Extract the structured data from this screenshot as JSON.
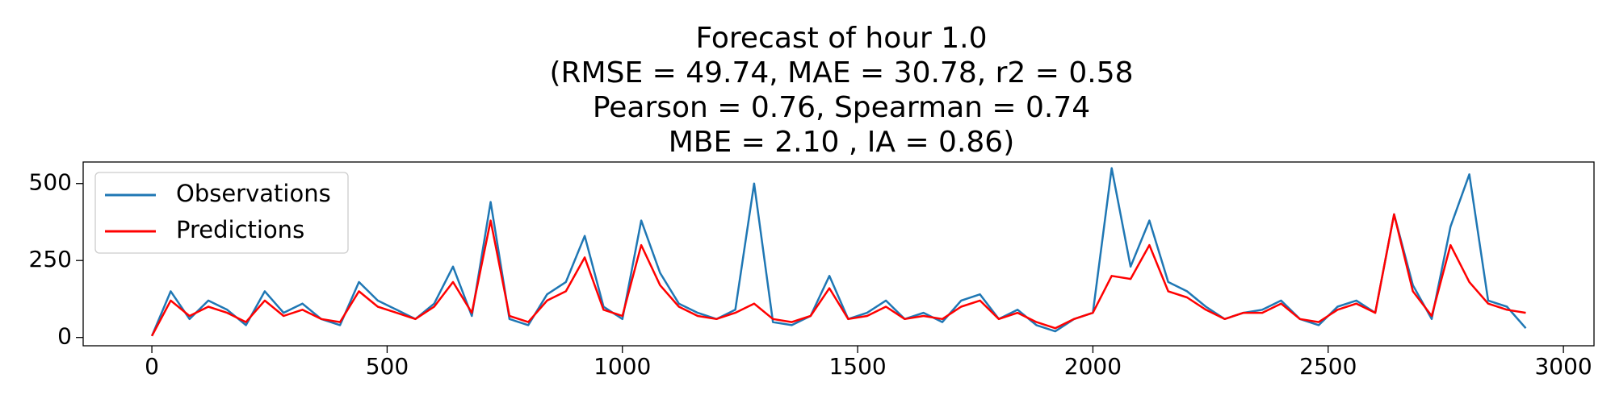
{
  "chart_data": {
    "type": "line",
    "title": [
      "Forecast of hour 1.0",
      "(RMSE = 49.74, MAE = 30.78, r2 = 0.58",
      "Pearson = 0.76, Spearman = 0.74",
      "MBE = 2.10 , IA = 0.86)"
    ],
    "x": [
      0,
      40,
      80,
      120,
      160,
      200,
      240,
      280,
      320,
      360,
      400,
      440,
      480,
      520,
      560,
      600,
      640,
      680,
      720,
      760,
      800,
      840,
      880,
      920,
      960,
      1000,
      1040,
      1080,
      1120,
      1160,
      1200,
      1240,
      1280,
      1320,
      1360,
      1400,
      1440,
      1480,
      1520,
      1560,
      1600,
      1640,
      1680,
      1720,
      1760,
      1800,
      1840,
      1880,
      1920,
      1960,
      2000,
      2040,
      2080,
      2120,
      2160,
      2200,
      2240,
      2280,
      2320,
      2360,
      2400,
      2440,
      2480,
      2520,
      2560,
      2600,
      2640,
      2680,
      2720,
      2760,
      2800,
      2840,
      2880,
      2920
    ],
    "series": [
      {
        "name": "Observations",
        "color": "#1f77b4",
        "values": [
          5,
          150,
          60,
          120,
          90,
          40,
          150,
          80,
          110,
          60,
          40,
          180,
          120,
          90,
          60,
          110,
          230,
          70,
          440,
          60,
          40,
          140,
          180,
          330,
          100,
          60,
          380,
          210,
          110,
          80,
          60,
          90,
          500,
          50,
          40,
          70,
          200,
          60,
          80,
          120,
          60,
          80,
          50,
          120,
          140,
          60,
          90,
          40,
          20,
          60,
          80,
          550,
          230,
          380,
          180,
          150,
          100,
          60,
          80,
          90,
          120,
          60,
          40,
          100,
          120,
          80,
          400,
          170,
          60,
          360,
          530,
          120,
          100,
          30
        ]
      },
      {
        "name": "Predictions",
        "color": "#ff0000",
        "values": [
          5,
          120,
          70,
          100,
          80,
          50,
          120,
          70,
          90,
          60,
          50,
          150,
          100,
          80,
          60,
          100,
          180,
          80,
          380,
          70,
          50,
          120,
          150,
          260,
          90,
          70,
          300,
          170,
          100,
          70,
          60,
          80,
          110,
          60,
          50,
          70,
          160,
          60,
          70,
          100,
          60,
          70,
          60,
          100,
          120,
          60,
          80,
          50,
          30,
          60,
          80,
          200,
          190,
          300,
          150,
          130,
          90,
          60,
          80,
          80,
          110,
          60,
          50,
          90,
          110,
          80,
          400,
          150,
          70,
          300,
          180,
          110,
          90,
          80
        ]
      }
    ],
    "xlim": [
      -146,
      3065
    ],
    "ylim": [
      -27,
      570
    ],
    "xticks": [
      0,
      500,
      1000,
      1500,
      2000,
      2500,
      3000
    ],
    "yticks": [
      0,
      250,
      500
    ],
    "legend": "upper left",
    "grid": false
  }
}
